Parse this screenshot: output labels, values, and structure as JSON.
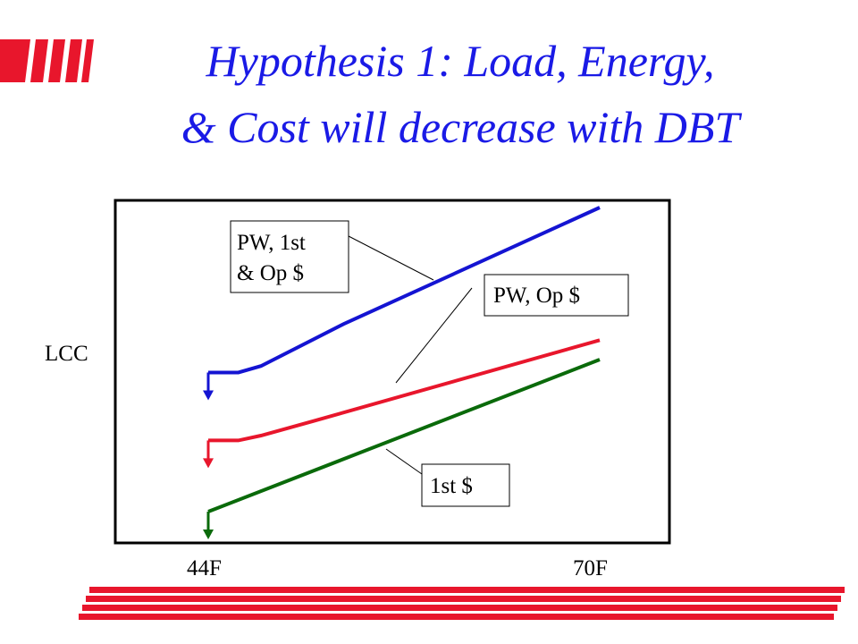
{
  "slide": {
    "title_line_1": "Hypothesis 1: Load, Energy,",
    "title_line_2": "& Cost will decrease with DBT",
    "title_color": "#1a1ae6",
    "accent_color": "#e8162c",
    "logo": "red-slanted-bars-mark",
    "footer": "red-horizontal-stripes"
  },
  "chart_data": {
    "type": "line",
    "ylabel": "LCC",
    "x_tick_labels": [
      "44F",
      "70F"
    ],
    "x_range": [
      44,
      70
    ],
    "y_axis_values_shown": false,
    "grid": false,
    "legend": "none",
    "series": [
      {
        "name": "PW, 1st & Op $",
        "color": "#1414d2",
        "points": [
          [
            44,
            49
          ],
          [
            46,
            49
          ],
          [
            47.5,
            51
          ],
          [
            53,
            64
          ],
          [
            70,
            100
          ]
        ]
      },
      {
        "name": "PW, Op $",
        "color": "#e8162c",
        "points": [
          [
            44,
            28
          ],
          [
            46,
            28
          ],
          [
            47.5,
            29.5
          ],
          [
            51,
            34
          ],
          [
            70,
            59
          ]
        ]
      },
      {
        "name": "1st $",
        "color": "#0a6a0a",
        "points": [
          [
            44,
            6
          ],
          [
            70,
            53
          ]
        ]
      }
    ],
    "annotations": [
      {
        "lines": [
          "PW, 1st",
          "& Op $"
        ],
        "series": "PW, 1st & Op $"
      },
      {
        "lines": [
          "PW, Op $"
        ],
        "series": "PW, Op $"
      },
      {
        "lines": [
          "1st $"
        ],
        "series": "1st $"
      }
    ],
    "optimum_markers": "down-arrow at 44F on each curve"
  }
}
